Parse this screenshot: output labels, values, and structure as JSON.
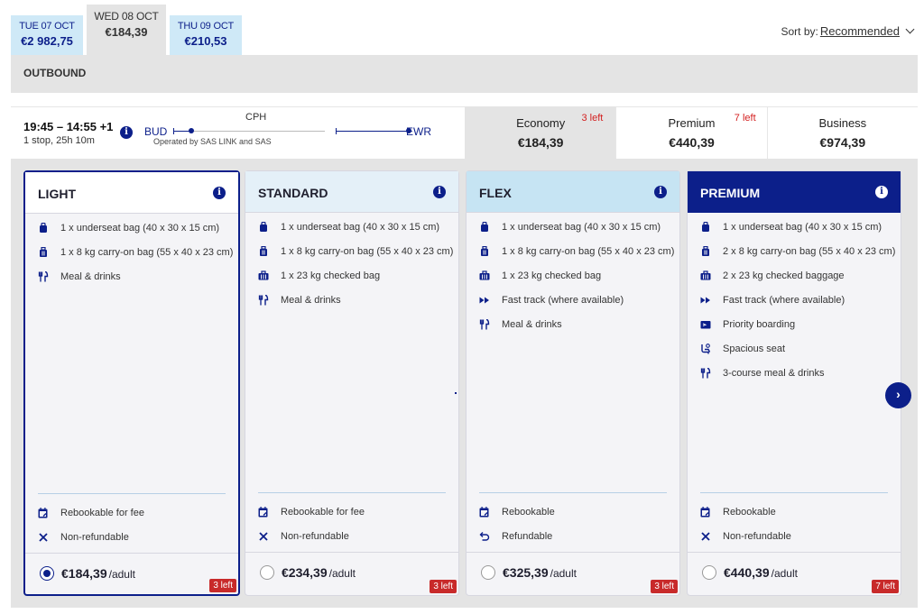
{
  "date_tabs": [
    {
      "date": "TUE 07 OCT",
      "price": "€2 982,75"
    },
    {
      "date": "WED 08 OCT",
      "price": "€184,39"
    },
    {
      "date": "THU 09 OCT",
      "price": "€210,53"
    }
  ],
  "sort": {
    "label": "Sort by:",
    "value": "Recommended"
  },
  "section_title": "OUTBOUND",
  "flight": {
    "times": "19:45 – 14:55 +1",
    "stops": "1 stop, 25h 10m",
    "origin": "BUD",
    "via": "CPH",
    "destination": "EWR",
    "operated": "Operated by SAS LINK and SAS"
  },
  "cabins": [
    {
      "name": "Economy",
      "price": "€184,39",
      "left": "3 left"
    },
    {
      "name": "Premium",
      "price": "€440,39",
      "left": "7 left"
    },
    {
      "name": "Business",
      "price": "€974,39",
      "left": ""
    }
  ],
  "fares": [
    {
      "title": "LIGHT",
      "features": [
        {
          "icon": "bag-icon",
          "text": "1 x underseat bag (40 x 30 x 15 cm)"
        },
        {
          "icon": "suitcase-icon",
          "text": "1 x 8 kg carry-on bag (55 x 40 x 23 cm)"
        },
        {
          "icon": "meal-icon",
          "text": "Meal & drinks"
        }
      ],
      "terms": [
        {
          "icon": "rebook-icon",
          "text": "Rebookable for fee"
        },
        {
          "icon": "cross-icon",
          "text": "Non-refundable"
        }
      ],
      "price": "€184,39",
      "per": "/adult",
      "badge": "3 left"
    },
    {
      "title": "STANDARD",
      "features": [
        {
          "icon": "bag-icon",
          "text": "1 x underseat bag (40 x 30 x 15 cm)"
        },
        {
          "icon": "suitcase-icon",
          "text": "1 x 8 kg carry-on bag (55 x 40 x 23 cm)"
        },
        {
          "icon": "checked-bag-icon",
          "text": "1 x 23 kg checked bag"
        },
        {
          "icon": "meal-icon",
          "text": "Meal & drinks"
        }
      ],
      "terms": [
        {
          "icon": "rebook-icon",
          "text": "Rebookable for fee"
        },
        {
          "icon": "cross-icon",
          "text": "Non-refundable"
        }
      ],
      "price": "€234,39",
      "per": "/adult",
      "badge": "3 left"
    },
    {
      "title": "FLEX",
      "features": [
        {
          "icon": "bag-icon",
          "text": "1 x underseat bag (40 x 30 x 15 cm)"
        },
        {
          "icon": "suitcase-icon",
          "text": "1 x 8 kg carry-on bag (55 x 40 x 23 cm)"
        },
        {
          "icon": "checked-bag-icon",
          "text": "1 x 23 kg checked bag"
        },
        {
          "icon": "fast-track-icon",
          "text": "Fast track (where available)"
        },
        {
          "icon": "meal-icon",
          "text": "Meal & drinks"
        }
      ],
      "terms": [
        {
          "icon": "rebook-icon",
          "text": "Rebookable"
        },
        {
          "icon": "refund-icon",
          "text": "Refundable"
        }
      ],
      "price": "€325,39",
      "per": "/adult",
      "badge": "3 left"
    },
    {
      "title": "PREMIUM",
      "features": [
        {
          "icon": "bag-icon",
          "text": "1 x underseat bag (40 x 30 x 15 cm)"
        },
        {
          "icon": "suitcase-icon",
          "text": "2 x 8 kg carry-on bag (55 x 40 x 23 cm)"
        },
        {
          "icon": "checked-bag-icon",
          "text": "2 x 23 kg checked baggage"
        },
        {
          "icon": "fast-track-icon",
          "text": "Fast track (where available)"
        },
        {
          "icon": "boarding-icon",
          "text": "Priority boarding"
        },
        {
          "icon": "seat-icon",
          "text": "Spacious seat"
        },
        {
          "icon": "meal-icon",
          "text": "3-course meal & drinks"
        }
      ],
      "terms": [
        {
          "icon": "rebook-icon",
          "text": "Rebookable"
        },
        {
          "icon": "cross-icon",
          "text": "Non-refundable"
        }
      ],
      "price": "€440,39",
      "per": "/adult",
      "badge": "7 left"
    }
  ],
  "selected_fare": "LIGHT",
  "colors": {
    "brand": "#0c1f8a",
    "light_header": "#e4f0f8",
    "flex_header": "#c6e4f3",
    "alert": "#c82a2a"
  }
}
